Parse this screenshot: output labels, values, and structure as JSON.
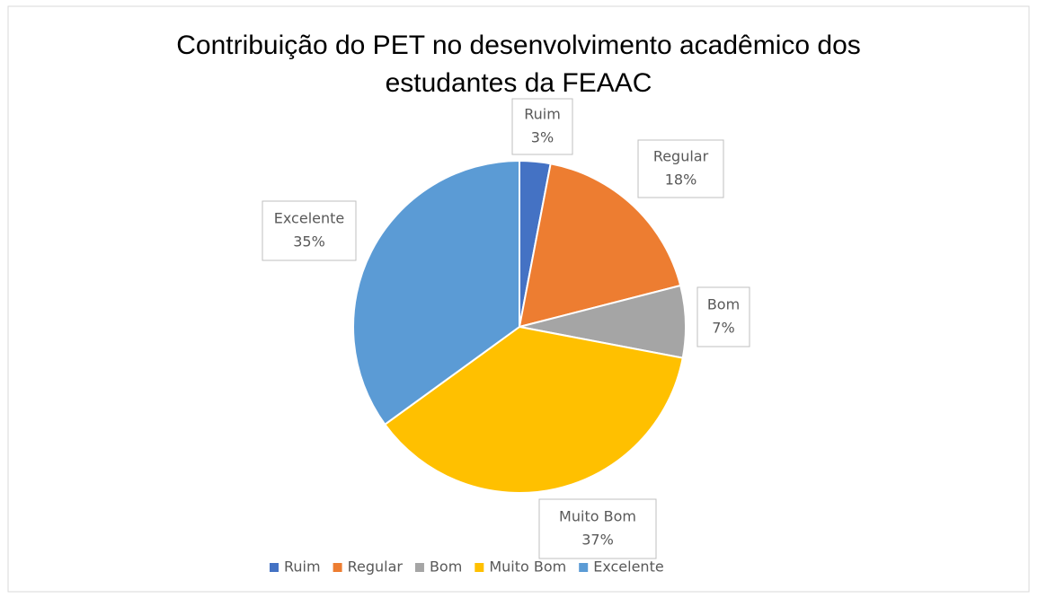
{
  "chart_data": {
    "type": "pie",
    "title": "Contribuição do PET no desenvolvimento acadêmico dos estudantes da FEAAC",
    "categories": [
      "Ruim",
      "Regular",
      "Bom",
      "Muito Bom",
      "Excelente"
    ],
    "values": [
      3,
      18,
      7,
      37,
      35
    ],
    "value_labels": [
      "3%",
      "18%",
      "7%",
      "37%",
      "35%"
    ],
    "colors": [
      "#4472c4",
      "#ed7d31",
      "#a5a5a5",
      "#ffc000",
      "#5b9bd5"
    ],
    "legend": "bottom"
  }
}
